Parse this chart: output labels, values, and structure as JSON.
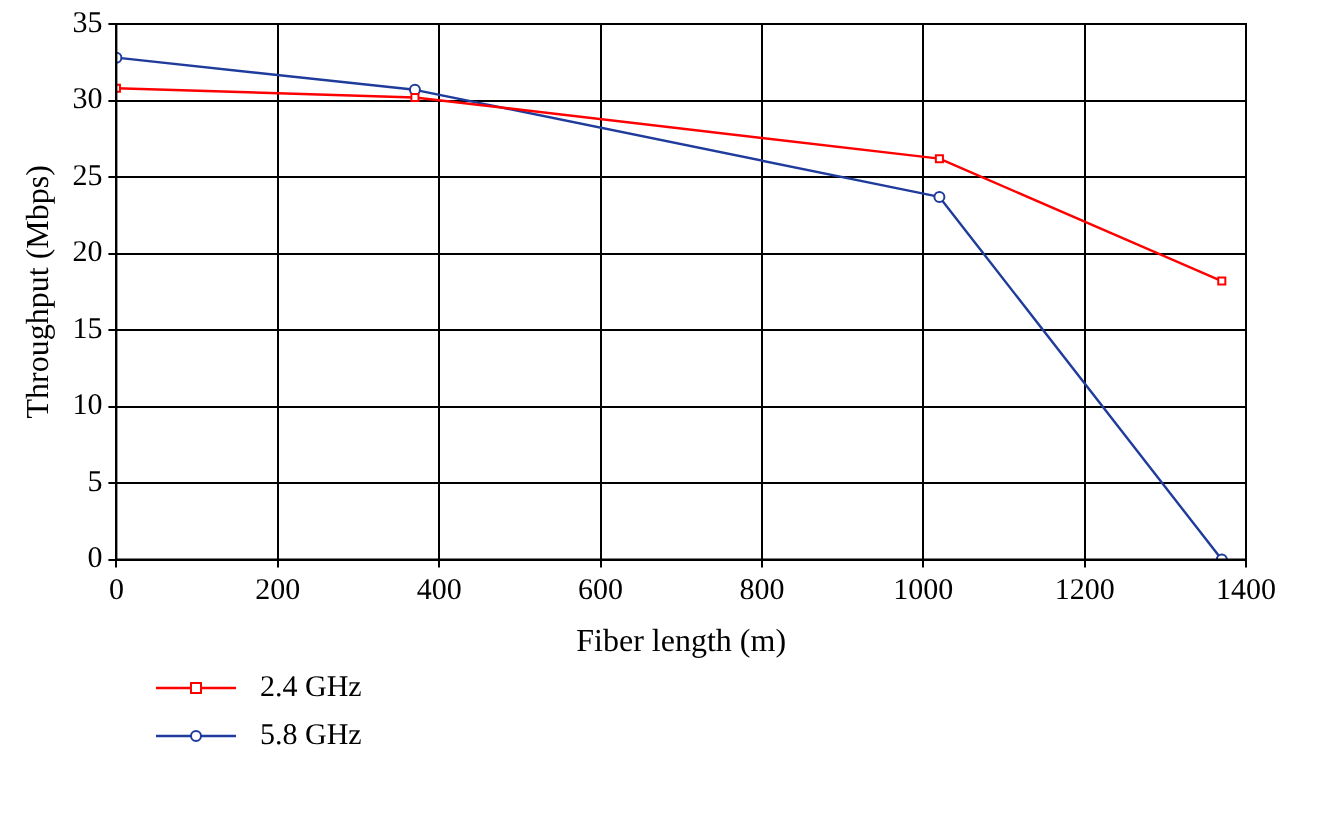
{
  "chart_data": {
    "type": "line",
    "xlabel": "Fiber length (m)",
    "ylabel": "Throughput (Mbps)",
    "x": [
      0,
      370,
      1020,
      1370
    ],
    "series": [
      {
        "name": "2.4 GHz",
        "color": "#ff0000",
        "marker": "square",
        "values": [
          30.8,
          30.2,
          26.2,
          18.2
        ]
      },
      {
        "name": "5.8 GHz",
        "color": "#1f3b9c",
        "marker": "circle",
        "values": [
          32.8,
          30.7,
          23.7,
          0
        ]
      }
    ],
    "xlim": [
      0,
      1400
    ],
    "xticks": [
      0,
      200,
      400,
      600,
      800,
      1000,
      1200,
      1400
    ],
    "ylim": [
      0,
      35
    ],
    "yticks": [
      0,
      5,
      10,
      15,
      20,
      25,
      30,
      35
    ],
    "grid": true,
    "legend": "bottom left",
    "line_style": "solid"
  }
}
